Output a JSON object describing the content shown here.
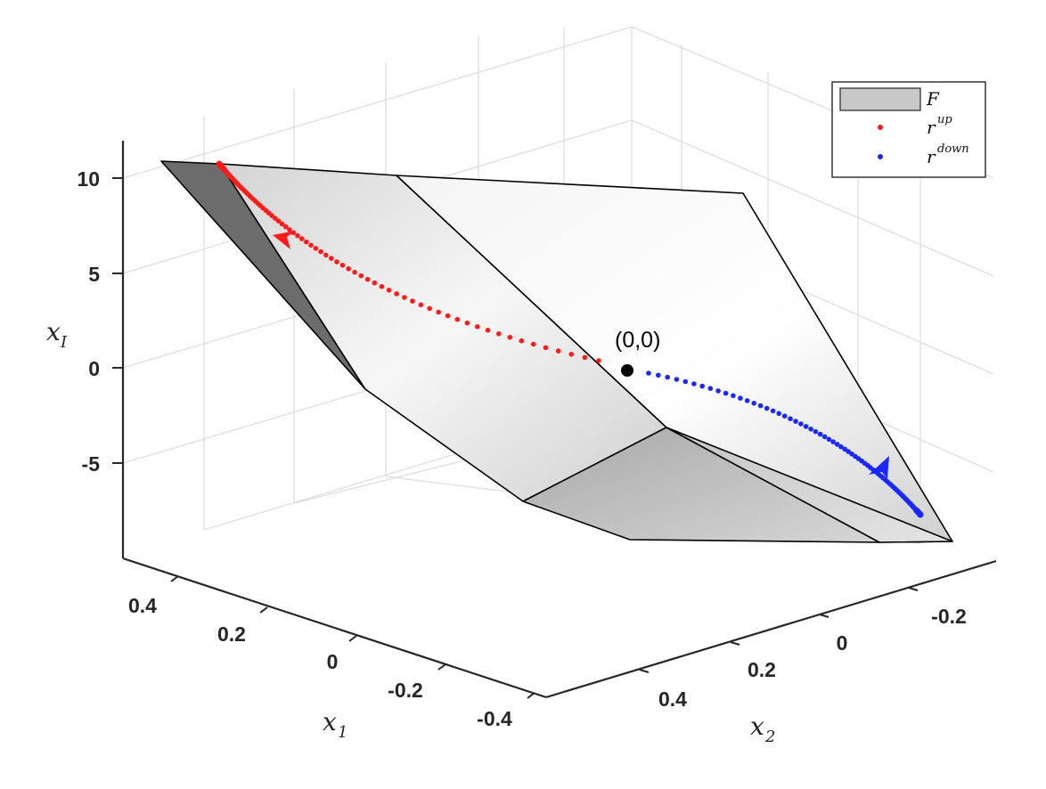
{
  "chart_data": {
    "type": "surface3d",
    "axes": {
      "z": {
        "label": "x",
        "label_sub": "I",
        "ticks": [
          "10",
          "5",
          "0",
          "-5"
        ]
      },
      "x1": {
        "label": "x",
        "label_sub": "1",
        "ticks": [
          "0.4",
          "0.2",
          "0",
          "-0.2",
          "-0.4"
        ]
      },
      "x2": {
        "label": "x",
        "label_sub": "2",
        "ticks": [
          "-0.2",
          "0",
          "0.2",
          "0.4"
        ]
      }
    },
    "grid": true,
    "legend": {
      "placement": "top-right",
      "entries": [
        {
          "label": "F",
          "kind": "patch",
          "color": "#c8c8c8"
        },
        {
          "label": "r",
          "sup": "up",
          "kind": "dot",
          "color": "#ff1a1a"
        },
        {
          "label": "r",
          "sup": "down",
          "kind": "dot",
          "color": "#1a28ff"
        }
      ]
    },
    "series": [
      {
        "name": "r^up",
        "color": "#ff1a1a",
        "direction": "outward to upper-left"
      },
      {
        "name": "r^down",
        "color": "#1a28ff",
        "direction": "outward to lower-right"
      }
    ],
    "annotation": {
      "text": "(0,0)",
      "color": "#000000"
    },
    "surface_color": "#c8c8c8"
  }
}
